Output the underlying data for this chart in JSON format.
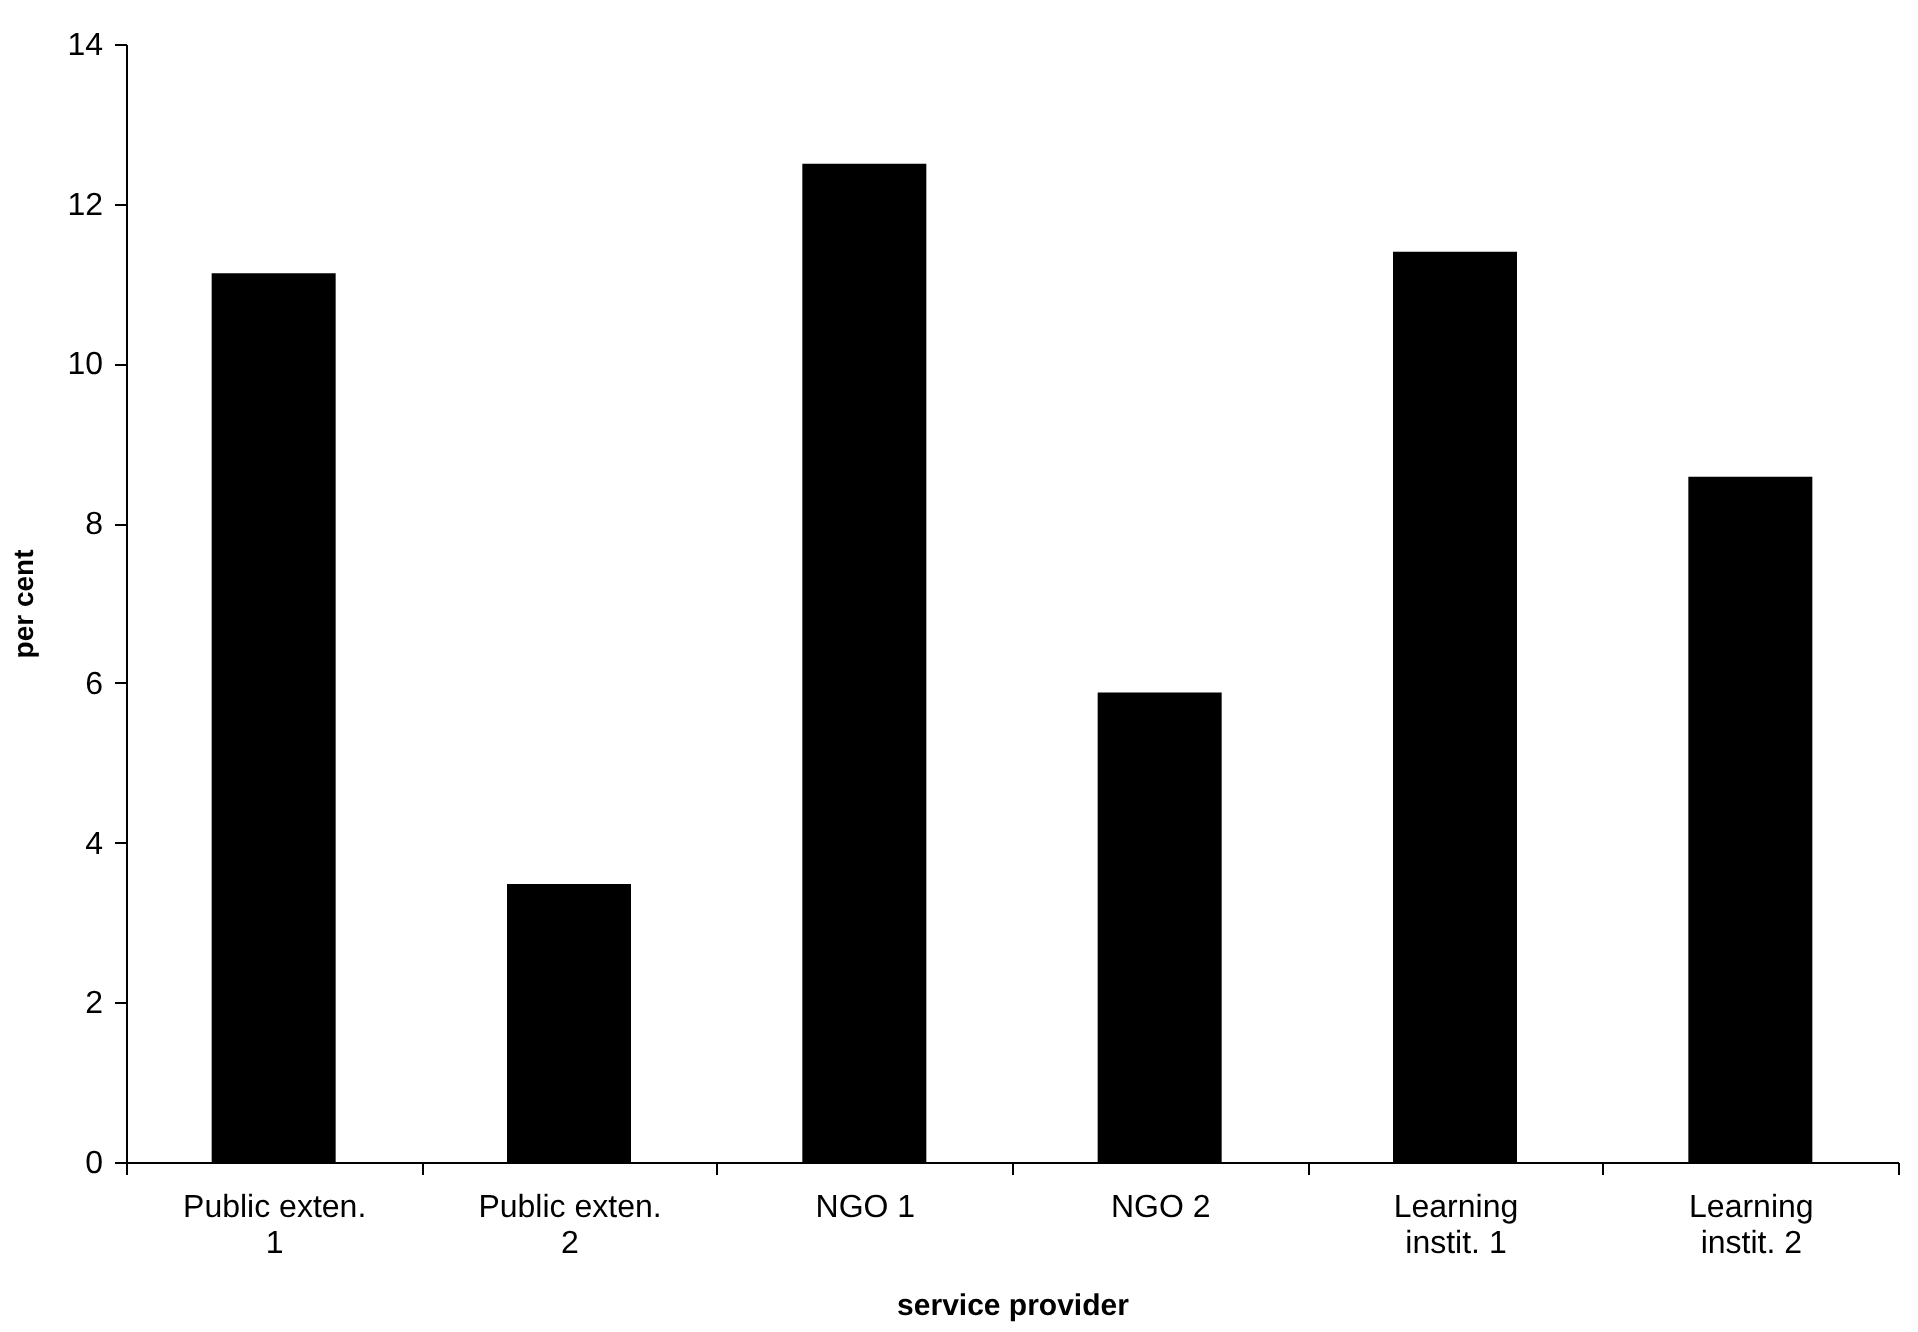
{
  "chart_data": {
    "type": "bar",
    "xlabel": "service provider",
    "ylabel": "per cent",
    "categories": [
      "Public exten. 1",
      "Public exten. 2",
      "NGO 1",
      "NGO 2",
      "Learning instit. 1",
      "Learning instit. 2"
    ],
    "values": [
      11.13,
      3.48,
      12.5,
      5.88,
      11.4,
      8.58
    ],
    "color": "#000000",
    "ylim": [
      0,
      14
    ],
    "yticks": [
      0,
      2,
      4,
      6,
      8,
      10,
      12,
      14
    ],
    "grid": false
  }
}
